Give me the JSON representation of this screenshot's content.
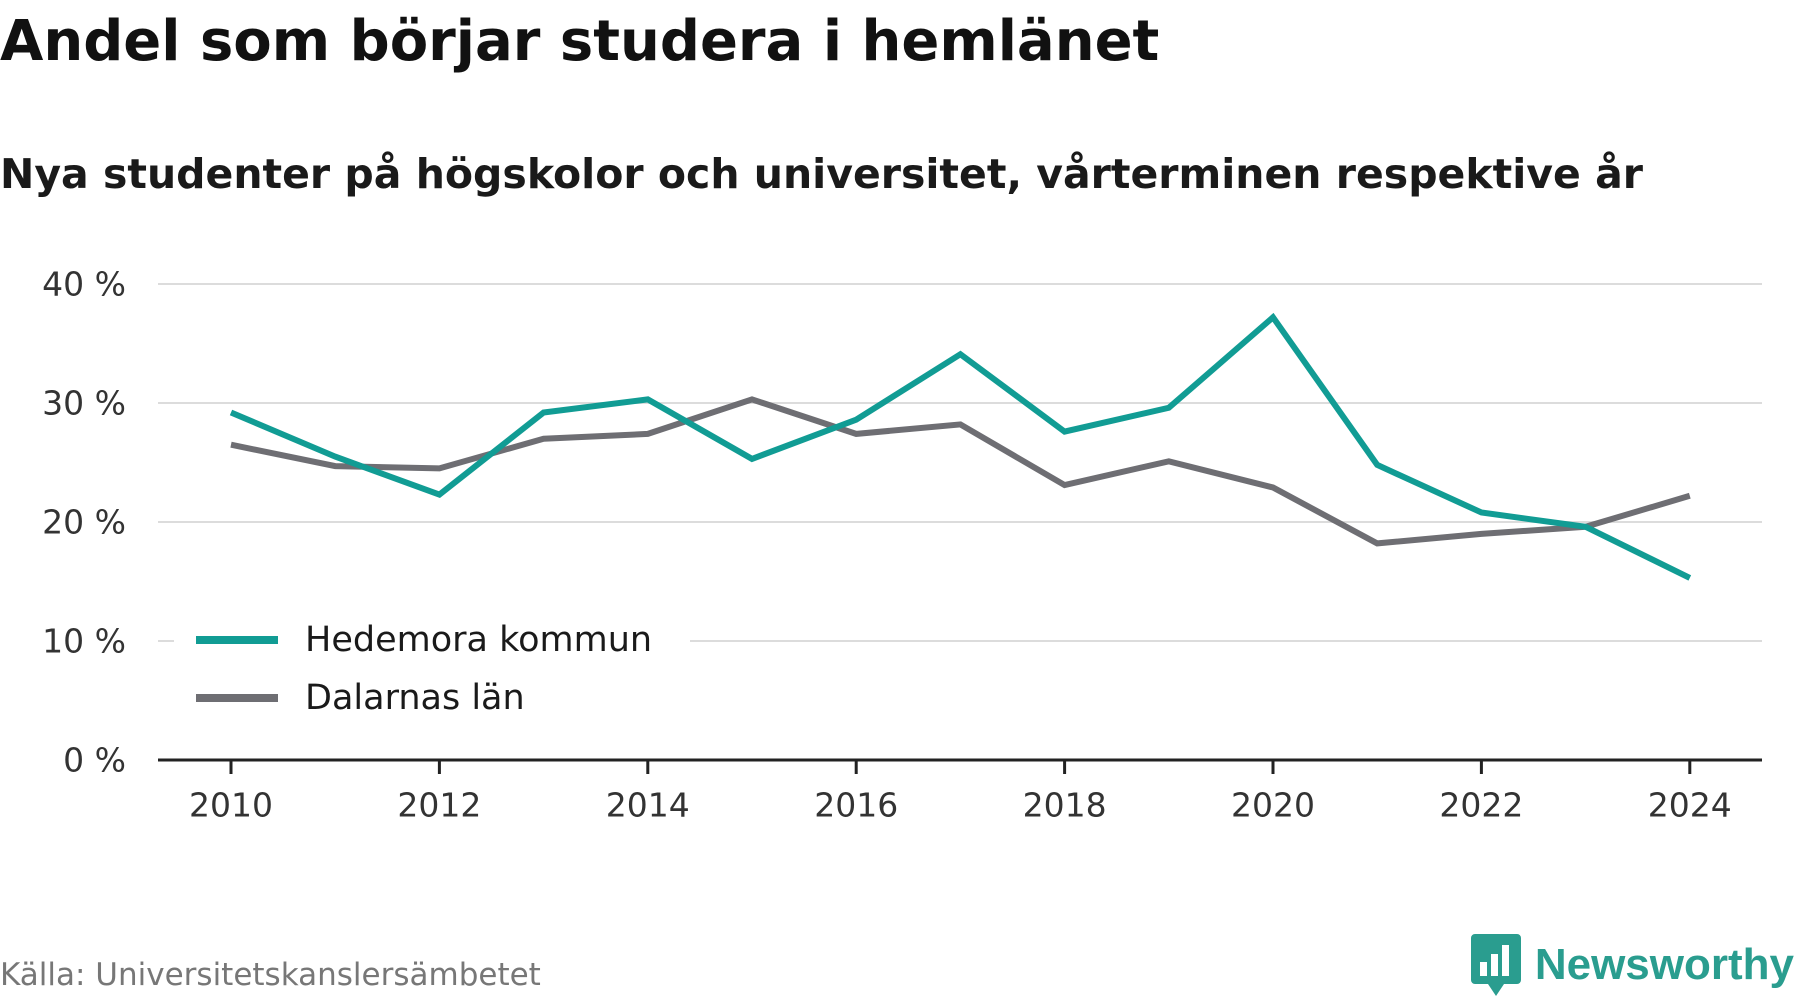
{
  "chart_data": {
    "type": "line",
    "title": "Andel som börjar studera i hemlänet",
    "subtitle": "Nya studenter på högskolor och universitet, vårterminen respektive år",
    "x": [
      2010,
      2011,
      2012,
      2013,
      2014,
      2015,
      2016,
      2017,
      2018,
      2019,
      2020,
      2021,
      2022,
      2023,
      2024
    ],
    "series": [
      {
        "name": "Hedemora kommun",
        "color": "#119c94",
        "values": [
          29.2,
          25.5,
          22.3,
          29.2,
          30.3,
          25.3,
          28.6,
          34.1,
          27.6,
          29.6,
          37.2,
          24.8,
          20.8,
          19.6,
          15.3
        ]
      },
      {
        "name": "Dalarnas län",
        "color": "#6e6e73",
        "values": [
          26.5,
          24.7,
          24.5,
          27.0,
          27.4,
          30.3,
          27.4,
          28.2,
          23.1,
          25.1,
          22.9,
          18.2,
          19.0,
          19.6,
          22.2
        ]
      }
    ],
    "xticks": [
      2010,
      2012,
      2014,
      2016,
      2018,
      2020,
      2022,
      2024
    ],
    "xtick_labels": [
      "2010",
      "2012",
      "2014",
      "2016",
      "2018",
      "2020",
      "2022",
      "2024"
    ],
    "yticks": [
      0,
      10,
      20,
      30,
      40
    ],
    "ytick_labels": [
      "0 %",
      "10 %",
      "20 %",
      "30 %",
      "40 %"
    ],
    "xlabel": "",
    "ylabel": "",
    "xlim": [
      2009.3,
      2024.7
    ],
    "ylim": [
      0,
      40
    ],
    "grid": "horizontal",
    "legend_position": "bottom-left"
  },
  "source": "Källa: Universitetskanslersämbetet",
  "brand": {
    "name": "Newsworthy",
    "icon": "newsworthy-logo-icon",
    "color": "#2a9d8f"
  }
}
